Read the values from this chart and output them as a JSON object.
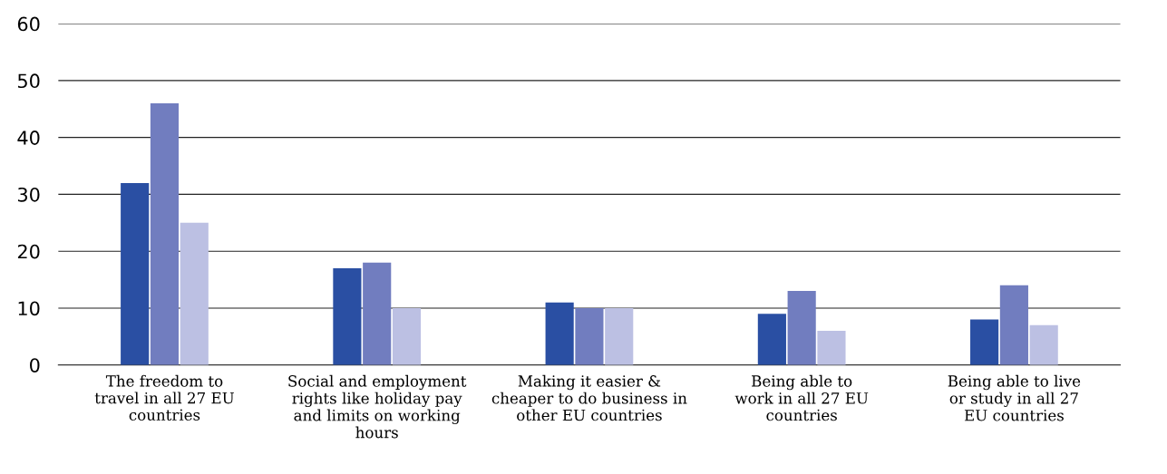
{
  "chart_data": {
    "type": "bar",
    "categories": [
      "The freedom to\ntravel in all 27 EU\ncountries",
      "Social and employment\nrights like holiday pay\nand limits on working\nhours",
      "Making it easier &\ncheaper to do business in\nother EU countries",
      "Being able to\nwork in all 27 EU\ncountries",
      "Being able to live\nor study in all 27\nEU countries"
    ],
    "series": [
      {
        "color": "#2a4fa3",
        "values": [
          32,
          17,
          11,
          9,
          8
        ]
      },
      {
        "color": "#717dbf",
        "values": [
          46,
          18,
          10,
          13,
          14
        ]
      },
      {
        "color": "#bcc0e3",
        "values": [
          25,
          10,
          10,
          6,
          7
        ]
      }
    ],
    "ylim": [
      0,
      60
    ],
    "yticks": [
      0,
      10,
      20,
      30,
      40,
      50,
      60
    ],
    "grid": "y"
  }
}
